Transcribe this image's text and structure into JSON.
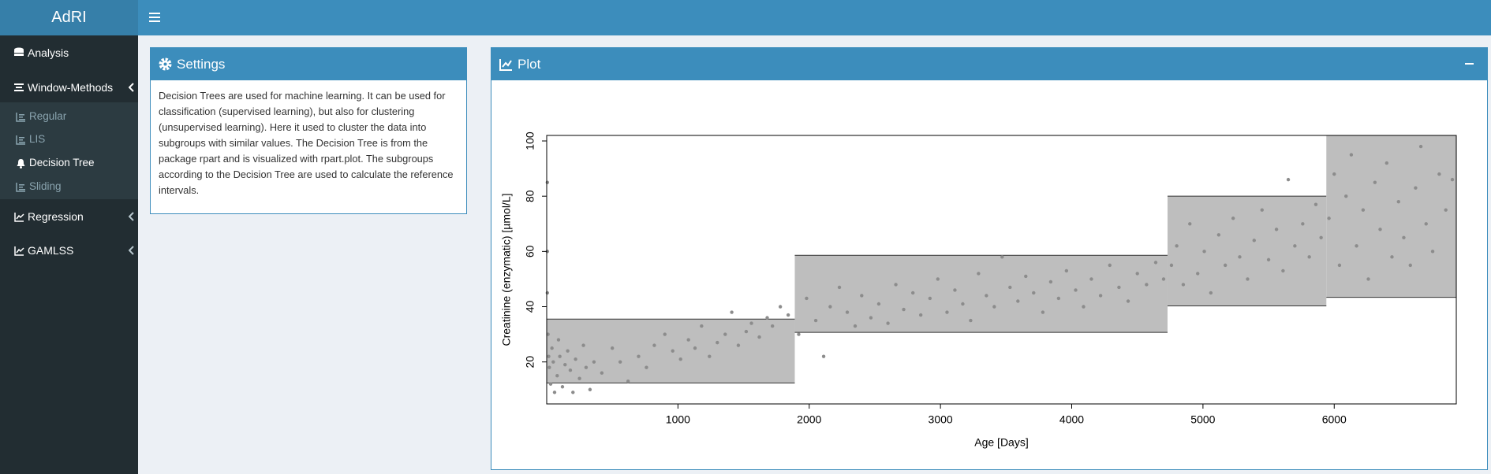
{
  "app": {
    "title": "AdRI"
  },
  "sidebar": {
    "items": [
      "Analysis",
      "Window-Methods",
      "Regression",
      "GAMLSS"
    ],
    "submenu": [
      "Regular",
      "LIS",
      "Decision Tree",
      "Sliding"
    ]
  },
  "settings": {
    "title": "Settings",
    "text": "Decision Trees are used for machine learning. It can be used for classification (supervised learning), but also for clustering (unsupervised learning). Here it used to cluster the data into subgroups with similar values. The Decision Tree is from the package rpart and is visualized with rpart.plot. The subgroups according to the Decision Tree are used to calculate the reference intervals."
  },
  "plot_box": {
    "title": "Plot"
  },
  "chart_data": {
    "type": "scatter",
    "xlabel": "Age [Days]",
    "ylabel": "Creatinine (enzymatic) [µmol/L]",
    "xlim": [
      0,
      6930
    ],
    "ylim": [
      4.8,
      102
    ],
    "xticks": [
      1000,
      2000,
      3000,
      4000,
      5000,
      6000
    ],
    "yticks": [
      20,
      40,
      60,
      80,
      100
    ],
    "color": "#8c8c8c",
    "interval_color": "#bebebe",
    "intervals": [
      {
        "x": [
          0,
          1890
        ],
        "lower": 12.4,
        "upper": 35.5
      },
      {
        "x": [
          1890,
          4730
        ],
        "lower": 30.7,
        "upper": 58.6
      },
      {
        "x": [
          4730,
          5940
        ],
        "lower": 40.3,
        "upper": 80
      },
      {
        "x": [
          5940,
          6930
        ],
        "lower": 43.4,
        "upper": 102
      }
    ],
    "x": [
      5,
      5,
      5,
      10,
      15,
      20,
      30,
      40,
      50,
      60,
      80,
      90,
      100,
      120,
      140,
      160,
      180,
      200,
      220,
      250,
      280,
      300,
      330,
      360,
      420,
      500,
      560,
      620,
      700,
      760,
      820,
      900,
      960,
      1020,
      1080,
      1130,
      1180,
      1240,
      1300,
      1360,
      1410,
      1460,
      1520,
      1560,
      1620,
      1680,
      1720,
      1780,
      1840,
      1920,
      1980,
      2050,
      2110,
      2160,
      2230,
      2290,
      2350,
      2400,
      2470,
      2530,
      2600,
      2660,
      2720,
      2790,
      2850,
      2920,
      2980,
      3050,
      3110,
      3170,
      3230,
      3290,
      3350,
      3410,
      3470,
      3530,
      3590,
      3650,
      3710,
      3780,
      3840,
      3900,
      3960,
      4030,
      4090,
      4150,
      4220,
      4290,
      4360,
      4430,
      4500,
      4570,
      4640,
      4700,
      4760,
      4800,
      4850,
      4900,
      4960,
      5010,
      5060,
      5120,
      5170,
      5230,
      5280,
      5340,
      5390,
      5450,
      5500,
      5560,
      5610,
      5650,
      5700,
      5760,
      5810,
      5860,
      5900,
      5960,
      6000,
      6040,
      6090,
      6130,
      6170,
      6220,
      6260,
      6310,
      6350,
      6400,
      6440,
      6490,
      6530,
      6580,
      6620,
      6660,
      6700,
      6750,
      6800,
      6850,
      6900
    ],
    "values": [
      85,
      60,
      45,
      30,
      22,
      18,
      12,
      25,
      20,
      9,
      15,
      28,
      22,
      11,
      19,
      24,
      17,
      9,
      21,
      14,
      26,
      18,
      10,
      20,
      16,
      25,
      20,
      13,
      22,
      18,
      26,
      30,
      24,
      21,
      28,
      25,
      33,
      22,
      27,
      30,
      38,
      26,
      31,
      34,
      29,
      36,
      33,
      40,
      37,
      30,
      43,
      35,
      22,
      40,
      47,
      38,
      33,
      44,
      36,
      41,
      34,
      48,
      39,
      45,
      37,
      43,
      50,
      38,
      46,
      41,
      35,
      52,
      44,
      40,
      58,
      47,
      42,
      51,
      45,
      38,
      49,
      43,
      53,
      46,
      40,
      50,
      44,
      55,
      47,
      42,
      52,
      48,
      56,
      50,
      55,
      62,
      48,
      70,
      52,
      60,
      45,
      66,
      55,
      72,
      58,
      50,
      64,
      75,
      57,
      68,
      53,
      86,
      62,
      70,
      58,
      77,
      65,
      72,
      88,
      55,
      80,
      95,
      62,
      75,
      50,
      85,
      68,
      92,
      58,
      78,
      65,
      55,
      83,
      98,
      70,
      60,
      88,
      75,
      86
    ]
  }
}
